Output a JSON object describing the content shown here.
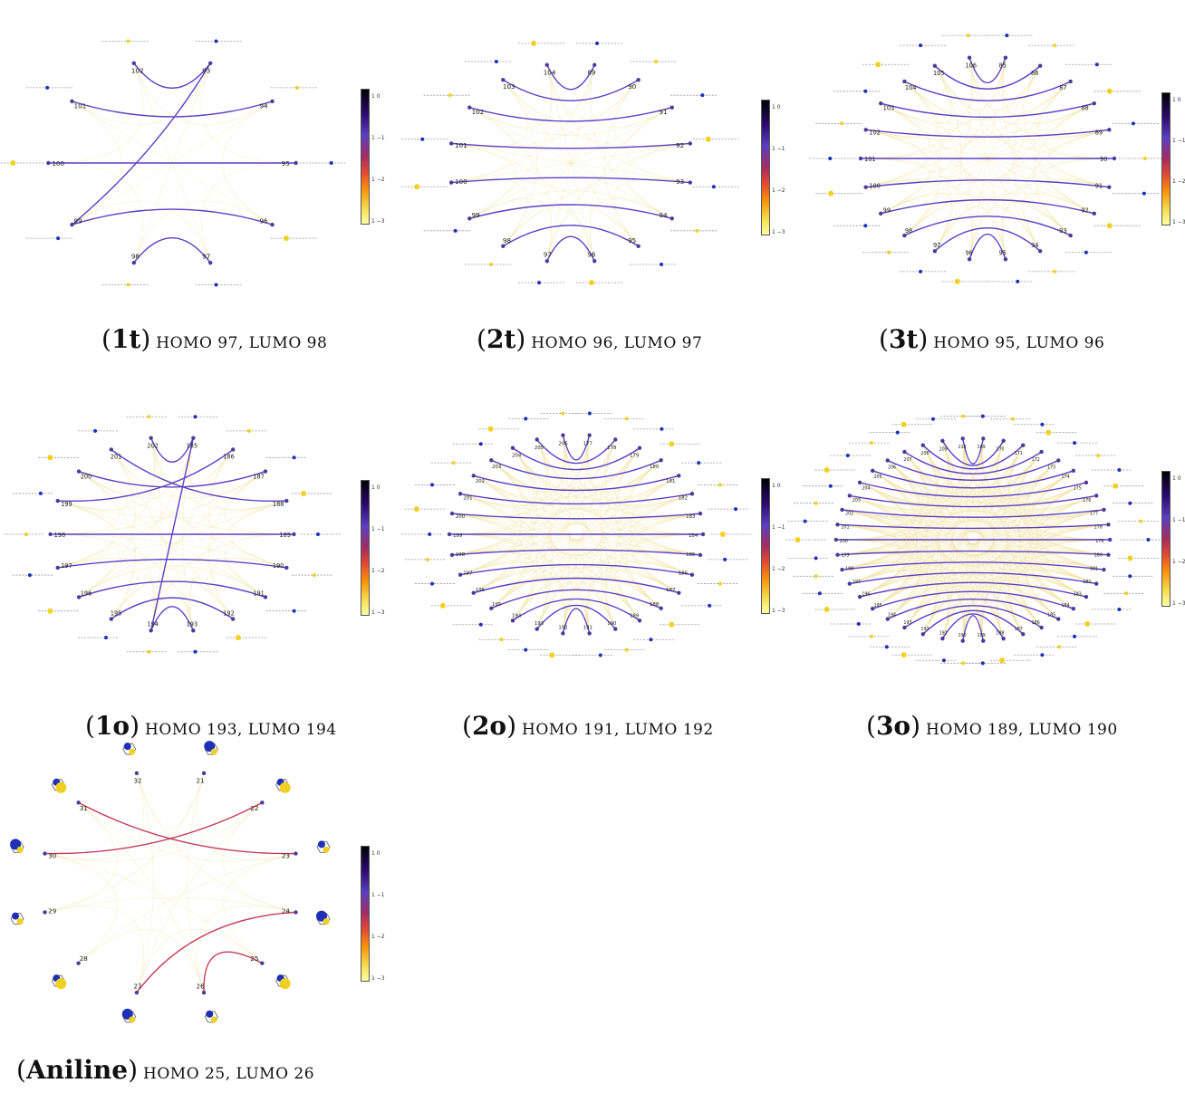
{
  "panels": [
    {
      "id": "1t",
      "label": "1t",
      "desc": "HOMO 97, LUMO 98",
      "nodes": [
        "93",
        "94",
        "95",
        "96",
        "97",
        "98",
        "99",
        "100",
        "101",
        "102"
      ],
      "edges": [
        [
          "101",
          "94"
        ],
        [
          "102",
          "93"
        ],
        [
          "100",
          "95"
        ],
        [
          "99",
          "93"
        ],
        [
          "98",
          "97"
        ],
        [
          "96",
          "99"
        ]
      ]
    },
    {
      "id": "2t",
      "label": "2t",
      "desc": "HOMO 96, LUMO 97",
      "nodes": [
        "89",
        "90",
        "91",
        "92",
        "93",
        "94",
        "95",
        "96",
        "97",
        "98",
        "99",
        "100",
        "101",
        "102",
        "103",
        "104"
      ],
      "edges": [
        [
          "103",
          "90"
        ],
        [
          "104",
          "89"
        ],
        [
          "102",
          "91"
        ],
        [
          "101",
          "92"
        ],
        [
          "100",
          "93"
        ],
        [
          "99",
          "94"
        ],
        [
          "98",
          "95"
        ],
        [
          "96",
          "97"
        ]
      ]
    },
    {
      "id": "3t",
      "label": "3t",
      "desc": "HOMO 95, LUMO 96",
      "nodes": [
        "85",
        "86",
        "87",
        "88",
        "89",
        "90",
        "91",
        "92",
        "93",
        "94",
        "95",
        "96",
        "97",
        "98",
        "99",
        "100",
        "101",
        "102",
        "103",
        "104",
        "105",
        "106"
      ],
      "edges": [
        [
          "105",
          "86"
        ],
        [
          "106",
          "85"
        ],
        [
          "104",
          "87"
        ],
        [
          "103",
          "88"
        ],
        [
          "102",
          "89"
        ],
        [
          "101",
          "90"
        ],
        [
          "100",
          "91"
        ],
        [
          "99",
          "92"
        ],
        [
          "98",
          "93"
        ],
        [
          "97",
          "94"
        ],
        [
          "96",
          "95"
        ]
      ]
    },
    {
      "id": "1o",
      "label": "1o",
      "desc": "HOMO 193, LUMO 194",
      "nodes": [
        "185",
        "186",
        "187",
        "188",
        "189",
        "190",
        "191",
        "192",
        "193",
        "194",
        "195",
        "196",
        "197",
        "198",
        "199",
        "200",
        "201",
        "202"
      ],
      "edges": [
        [
          "201",
          "188"
        ],
        [
          "202",
          "185"
        ],
        [
          "200",
          "187"
        ],
        [
          "199",
          "186"
        ],
        [
          "198",
          "189"
        ],
        [
          "197",
          "190"
        ],
        [
          "196",
          "191"
        ],
        [
          "195",
          "192"
        ],
        [
          "194",
          "185"
        ],
        [
          "193",
          "194"
        ]
      ]
    },
    {
      "id": "2o",
      "label": "2o",
      "desc": "HOMO 191, LUMO 192",
      "nodes": [
        "177",
        "178",
        "179",
        "180",
        "181",
        "182",
        "183",
        "184",
        "185",
        "186",
        "187",
        "188",
        "189",
        "190",
        "191",
        "192",
        "193",
        "194",
        "195",
        "196",
        "197",
        "198",
        "199",
        "200",
        "201",
        "202",
        "203",
        "204",
        "205",
        "206"
      ],
      "edges": [
        [
          "205",
          "178"
        ],
        [
          "206",
          "177"
        ],
        [
          "204",
          "179"
        ],
        [
          "203",
          "180"
        ],
        [
          "202",
          "181"
        ],
        [
          "201",
          "182"
        ],
        [
          "200",
          "183"
        ],
        [
          "199",
          "184"
        ],
        [
          "198",
          "185"
        ],
        [
          "197",
          "186"
        ],
        [
          "196",
          "187"
        ],
        [
          "195",
          "188"
        ],
        [
          "194",
          "189"
        ],
        [
          "193",
          "190"
        ],
        [
          "192",
          "191"
        ]
      ]
    },
    {
      "id": "3o",
      "label": "3o",
      "desc": "HOMO 189, LUMO 190",
      "nodes": [
        "169",
        "170",
        "171",
        "172",
        "173",
        "174",
        "175",
        "176",
        "177",
        "178",
        "179",
        "180",
        "181",
        "182",
        "183",
        "184",
        "185",
        "186",
        "187",
        "188",
        "189",
        "190",
        "191",
        "192",
        "193",
        "194",
        "195",
        "196",
        "197",
        "198",
        "199",
        "200",
        "201",
        "202",
        "203",
        "204",
        "205",
        "206",
        "207",
        "208",
        "209",
        "210"
      ],
      "edges": [
        [
          "209",
          "170"
        ],
        [
          "210",
          "169"
        ],
        [
          "208",
          "171"
        ],
        [
          "207",
          "172"
        ],
        [
          "206",
          "173"
        ],
        [
          "205",
          "174"
        ],
        [
          "204",
          "175"
        ],
        [
          "203",
          "176"
        ],
        [
          "202",
          "177"
        ],
        [
          "201",
          "178"
        ],
        [
          "200",
          "179"
        ],
        [
          "199",
          "180"
        ],
        [
          "198",
          "181"
        ],
        [
          "197",
          "182"
        ],
        [
          "196",
          "183"
        ],
        [
          "195",
          "184"
        ],
        [
          "194",
          "185"
        ],
        [
          "193",
          "186"
        ],
        [
          "192",
          "187"
        ],
        [
          "191",
          "188"
        ],
        [
          "190",
          "189"
        ]
      ]
    },
    {
      "id": "aniline",
      "label": "Aniline",
      "desc": "HOMO 25, LUMO 26",
      "nodes": [
        "21",
        "22",
        "23",
        "24",
        "25",
        "26",
        "27",
        "28",
        "29",
        "30",
        "31",
        "32"
      ],
      "edges": [
        [
          "31",
          "23"
        ],
        [
          "30",
          "22"
        ],
        [
          "27",
          "24"
        ],
        [
          "26",
          "25"
        ]
      ]
    }
  ],
  "colorbar": {
    "ticks": [
      "1 0",
      "1 −1",
      "1 −2",
      "1 −3"
    ],
    "colormap": [
      "#000004",
      "#2b0a6e",
      "#5a3fc0",
      "#a52c60",
      "#e34a33",
      "#f98e09",
      "#f5db4b",
      "#fcffa4"
    ]
  },
  "colors": {
    "strong_edge": "#5b3fc4",
    "weak_edge": "#f3e3a0",
    "aniline_edge": "#c23b5a",
    "node": "#4a3a9a",
    "orbital_blue": "#1f2fb8",
    "orbital_yellow": "#f0d020"
  }
}
